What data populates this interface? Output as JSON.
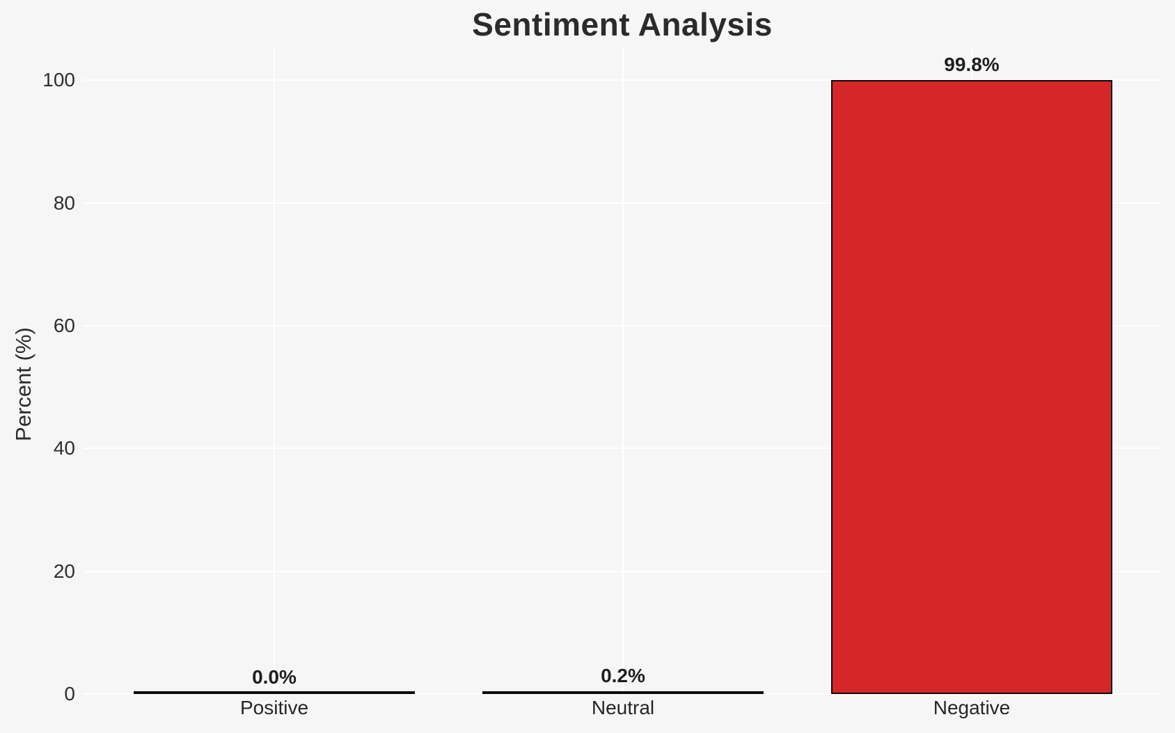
{
  "chart_data": {
    "type": "bar",
    "title": "Sentiment Analysis",
    "xlabel": "",
    "ylabel": "Percent (%)",
    "categories": [
      "Positive",
      "Neutral",
      "Negative"
    ],
    "values": [
      0.0,
      0.2,
      99.8
    ],
    "bar_labels": [
      "0.0%",
      "0.2%",
      "99.8%"
    ],
    "yticks": [
      0,
      20,
      40,
      60,
      80,
      100
    ],
    "ylim": [
      0,
      105
    ],
    "legend": "none",
    "grid": "white horizontal gridlines at y ticks and vertical gridlines at category centers",
    "colors": {
      "bar_fill": "#d62728",
      "bar_edge": "#0a0a0a",
      "background": "#f6f6f6",
      "gridline": "#ffffff",
      "text": "#262626"
    }
  }
}
